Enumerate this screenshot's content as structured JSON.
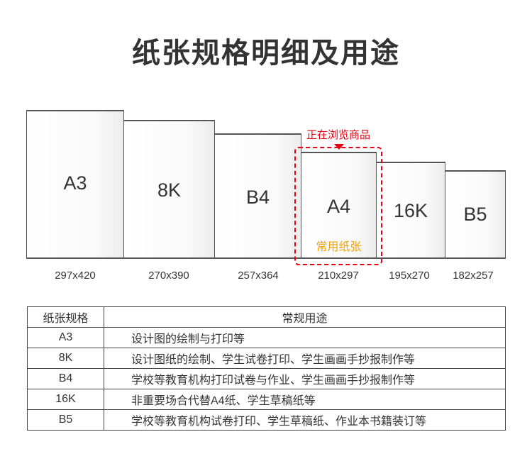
{
  "title": "纸张规格明细及用途",
  "papers": [
    {
      "name": "A3",
      "size": "297x420"
    },
    {
      "name": "8K",
      "size": "270x390"
    },
    {
      "name": "B4",
      "size": "257x364"
    },
    {
      "name": "A4",
      "size": "210x297"
    },
    {
      "name": "16K",
      "size": "195x270"
    },
    {
      "name": "B5",
      "size": "182x257"
    }
  ],
  "highlight": {
    "browsing_label": "正在浏览商品",
    "common_label": "常用纸张",
    "color": "#e60012",
    "common_color": "#f5a100"
  },
  "table": {
    "headers": [
      "纸张规格",
      "常规用途"
    ],
    "rows": [
      [
        "A3",
        "设计图的绘制与打印等"
      ],
      [
        "8K",
        "设计图纸的绘制、学生试卷打印、学生画画手抄报制作等"
      ],
      [
        "B4",
        "学校等教育机构打印试卷与作业、学生画画手抄报制作等"
      ],
      [
        "16K",
        "非重要场合代替A4纸、学生草稿纸等"
      ],
      [
        "B5",
        "学校等教育机构试卷打印、学生草稿纸、作业本书籍装订等"
      ]
    ]
  }
}
